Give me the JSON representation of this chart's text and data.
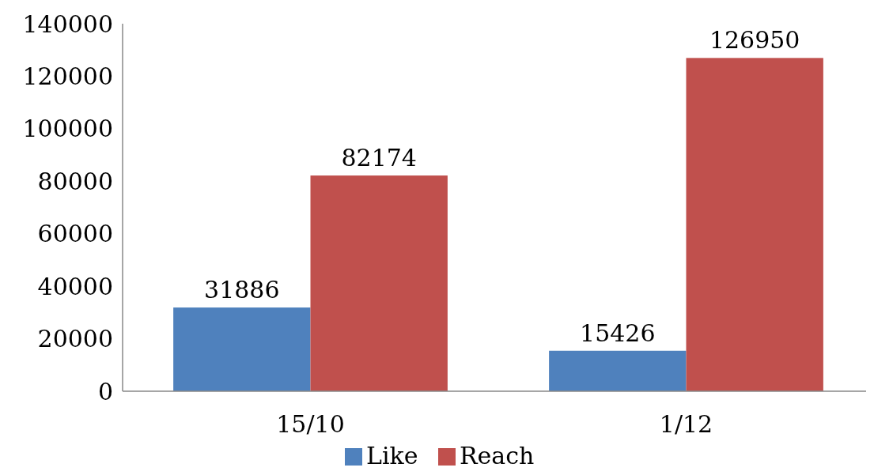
{
  "chart_data": {
    "type": "bar",
    "categories": [
      "15/10",
      "1/12"
    ],
    "series": [
      {
        "name": "Like",
        "color": "#4f81bd",
        "values": [
          31886,
          15426
        ]
      },
      {
        "name": "Reach",
        "color": "#c0504d",
        "values": [
          82174,
          126950
        ]
      }
    ],
    "ylim": [
      0,
      140000
    ],
    "yticks": [
      0,
      20000,
      40000,
      60000,
      80000,
      100000,
      120000,
      140000
    ],
    "data_labels": true,
    "grid": false,
    "legend": "bottom"
  }
}
